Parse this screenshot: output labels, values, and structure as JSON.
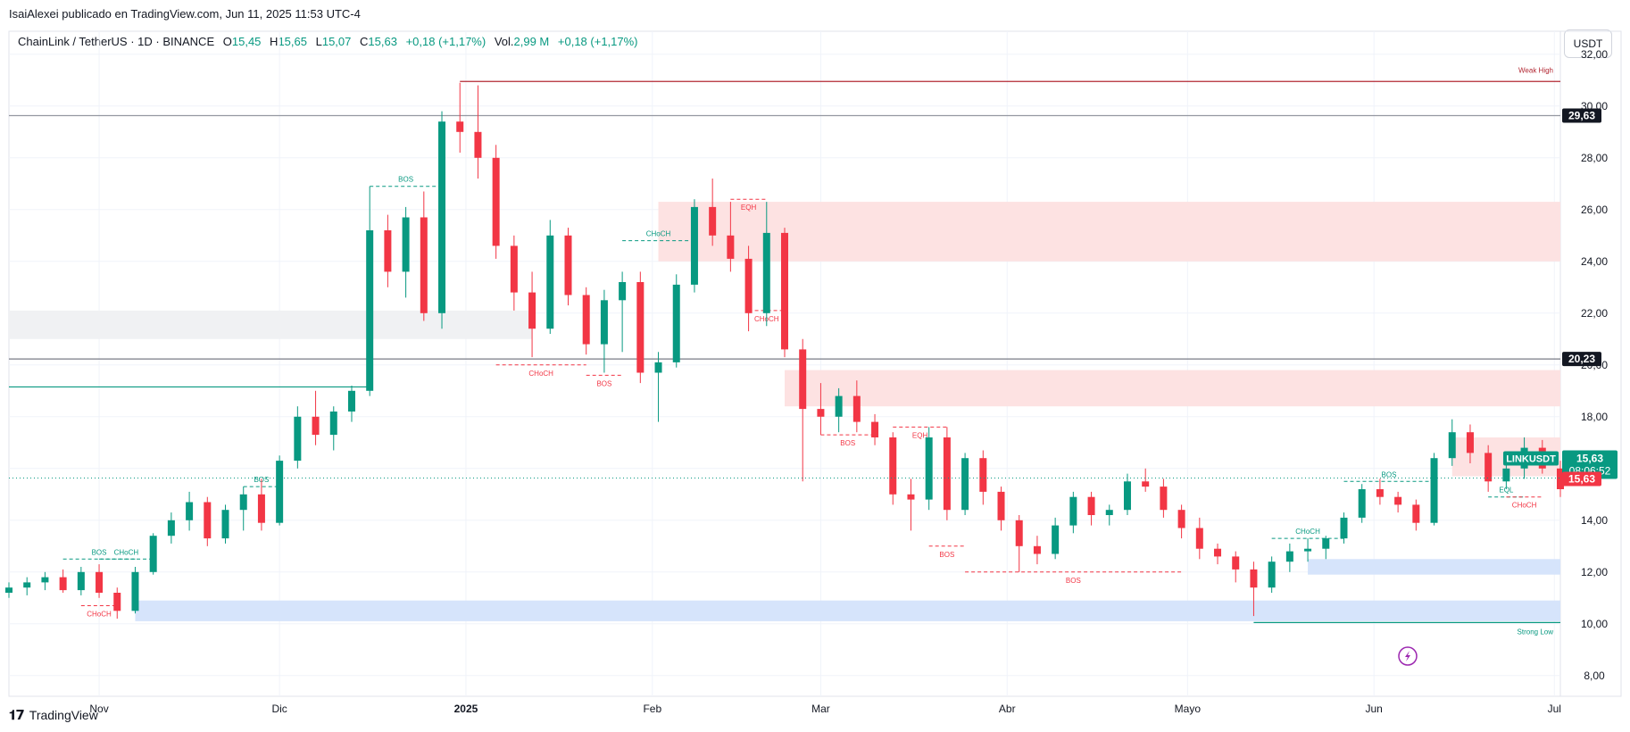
{
  "header": {
    "publisher_line": "IsaiAlexei publicado en TradingView.com, Jun 11, 2025 11:53 UTC-4",
    "symbol_line": "ChainLink / TetherUS · 1D · BINANCE",
    "ohlc": [
      {
        "k": "O",
        "v": "15,45"
      },
      {
        "k": "H",
        "v": "15,65"
      },
      {
        "k": "L",
        "v": "15,07"
      },
      {
        "k": "C",
        "v": "15,63"
      }
    ],
    "change": "+0,18 (+1,17%)",
    "vol_label": "Vol.",
    "vol_value": "2,99 M",
    "vol_change": "+0,18 (+1,17%)",
    "currency_button": "USDT"
  },
  "footer": {
    "brand": "TradingView"
  },
  "colors": {
    "up": "#089981",
    "down": "#f23645",
    "supply_zone": "#fde2e2",
    "demand_zone": "#d6e4fb",
    "neutral_zone": "#f0f1f3",
    "grid": "#f0f3fa"
  },
  "chart_data": {
    "type": "candlestick",
    "symbol": "LINKUSDT",
    "timeframe": "1D",
    "x_labels": [
      {
        "label": "Nov",
        "date": "2024-11-01"
      },
      {
        "label": "Dic",
        "date": "2024-12-01"
      },
      {
        "label": "2025",
        "date": "2025-01-01"
      },
      {
        "label": "Feb",
        "date": "2025-02-01"
      },
      {
        "label": "Mar",
        "date": "2025-03-01"
      },
      {
        "label": "Abr",
        "date": "2025-04-01"
      },
      {
        "label": "Mayo",
        "date": "2025-05-01"
      },
      {
        "label": "Jun",
        "date": "2025-06-01"
      },
      {
        "label": "Jul",
        "date": "2025-07-01"
      }
    ],
    "x_range": [
      "2024-10-17",
      "2025-07-02"
    ],
    "ylim": [
      7.2,
      32.2
    ],
    "y_ticks": [
      "8,00",
      "10,00",
      "12,00",
      "14,00",
      "16,00",
      "18,00",
      "20,00",
      "22,00",
      "24,00",
      "26,00",
      "28,00",
      "30,00",
      "32,00"
    ],
    "price_badges": [
      {
        "text": "29,63",
        "value": 29.63
      },
      {
        "text": "20,23",
        "value": 20.23
      }
    ],
    "current": {
      "symbol": "LINKUSDT",
      "price": "15,63",
      "countdown": "08:06:52",
      "value": 15.63
    },
    "candles": [
      {
        "d": "2024-10-17",
        "o": 11.2,
        "h": 11.6,
        "l": 11.0,
        "c": 11.4
      },
      {
        "d": "2024-10-20",
        "o": 11.4,
        "h": 11.8,
        "l": 11.1,
        "c": 11.6
      },
      {
        "d": "2024-10-23",
        "o": 11.6,
        "h": 12.0,
        "l": 11.3,
        "c": 11.8
      },
      {
        "d": "2024-10-26",
        "o": 11.8,
        "h": 12.1,
        "l": 11.2,
        "c": 11.3
      },
      {
        "d": "2024-10-29",
        "o": 11.3,
        "h": 12.2,
        "l": 11.1,
        "c": 12.0
      },
      {
        "d": "2024-11-01",
        "o": 12.0,
        "h": 12.3,
        "l": 11.0,
        "c": 11.2
      },
      {
        "d": "2024-11-04",
        "o": 11.2,
        "h": 11.4,
        "l": 10.2,
        "c": 10.5
      },
      {
        "d": "2024-11-07",
        "o": 10.5,
        "h": 12.2,
        "l": 10.4,
        "c": 12.0
      },
      {
        "d": "2024-11-10",
        "o": 12.0,
        "h": 13.5,
        "l": 11.9,
        "c": 13.4
      },
      {
        "d": "2024-11-13",
        "o": 13.4,
        "h": 14.3,
        "l": 13.1,
        "c": 14.0
      },
      {
        "d": "2024-11-16",
        "o": 14.0,
        "h": 15.1,
        "l": 13.6,
        "c": 14.7
      },
      {
        "d": "2024-11-19",
        "o": 14.7,
        "h": 14.9,
        "l": 13.0,
        "c": 13.3
      },
      {
        "d": "2024-11-22",
        "o": 13.3,
        "h": 14.6,
        "l": 13.1,
        "c": 14.4
      },
      {
        "d": "2024-11-25",
        "o": 14.4,
        "h": 15.3,
        "l": 13.6,
        "c": 15.0
      },
      {
        "d": "2024-11-28",
        "o": 15.0,
        "h": 15.6,
        "l": 13.6,
        "c": 13.9
      },
      {
        "d": "2024-12-01",
        "o": 13.9,
        "h": 16.5,
        "l": 13.8,
        "c": 16.3
      },
      {
        "d": "2024-12-04",
        "o": 16.3,
        "h": 18.4,
        "l": 16.0,
        "c": 18.0
      },
      {
        "d": "2024-12-07",
        "o": 18.0,
        "h": 19.0,
        "l": 16.9,
        "c": 17.3
      },
      {
        "d": "2024-12-10",
        "o": 17.3,
        "h": 18.4,
        "l": 16.7,
        "c": 18.2
      },
      {
        "d": "2024-12-13",
        "o": 18.2,
        "h": 19.2,
        "l": 17.8,
        "c": 19.0
      },
      {
        "d": "2024-12-16",
        "o": 19.0,
        "h": 26.9,
        "l": 18.8,
        "c": 25.2
      },
      {
        "d": "2024-12-19",
        "o": 25.2,
        "h": 25.8,
        "l": 23.0,
        "c": 23.6
      },
      {
        "d": "2024-12-22",
        "o": 23.6,
        "h": 26.1,
        "l": 22.6,
        "c": 25.7
      },
      {
        "d": "2024-12-25",
        "o": 25.7,
        "h": 26.7,
        "l": 21.7,
        "c": 22.0
      },
      {
        "d": "2024-12-28",
        "o": 22.0,
        "h": 29.8,
        "l": 21.4,
        "c": 29.4
      },
      {
        "d": "2024-12-31",
        "o": 29.4,
        "h": 30.9,
        "l": 28.2,
        "c": 29.0
      },
      {
        "d": "2025-01-03",
        "o": 29.0,
        "h": 30.8,
        "l": 27.2,
        "c": 28.0
      },
      {
        "d": "2025-01-06",
        "o": 28.0,
        "h": 28.5,
        "l": 24.1,
        "c": 24.6
      },
      {
        "d": "2025-01-09",
        "o": 24.6,
        "h": 25.0,
        "l": 22.1,
        "c": 22.8
      },
      {
        "d": "2025-01-12",
        "o": 22.8,
        "h": 23.6,
        "l": 20.3,
        "c": 21.4
      },
      {
        "d": "2025-01-15",
        "o": 21.4,
        "h": 25.6,
        "l": 21.2,
        "c": 25.0
      },
      {
        "d": "2025-01-18",
        "o": 25.0,
        "h": 25.3,
        "l": 22.3,
        "c": 22.7
      },
      {
        "d": "2025-01-21",
        "o": 22.7,
        "h": 23.0,
        "l": 20.4,
        "c": 20.8
      },
      {
        "d": "2025-01-24",
        "o": 20.8,
        "h": 22.9,
        "l": 19.7,
        "c": 22.5
      },
      {
        "d": "2025-01-27",
        "o": 22.5,
        "h": 23.6,
        "l": 20.5,
        "c": 23.2
      },
      {
        "d": "2025-01-30",
        "o": 23.2,
        "h": 23.6,
        "l": 19.3,
        "c": 19.7
      },
      {
        "d": "2025-02-02",
        "o": 19.7,
        "h": 20.5,
        "l": 17.8,
        "c": 20.1
      },
      {
        "d": "2025-02-05",
        "o": 20.1,
        "h": 23.5,
        "l": 19.9,
        "c": 23.1
      },
      {
        "d": "2025-02-08",
        "o": 23.1,
        "h": 26.4,
        "l": 22.8,
        "c": 26.1
      },
      {
        "d": "2025-02-11",
        "o": 26.1,
        "h": 27.2,
        "l": 24.6,
        "c": 25.0
      },
      {
        "d": "2025-02-14",
        "o": 25.0,
        "h": 26.3,
        "l": 23.6,
        "c": 24.1
      },
      {
        "d": "2025-02-17",
        "o": 24.1,
        "h": 24.6,
        "l": 21.3,
        "c": 22.0
      },
      {
        "d": "2025-02-20",
        "o": 22.0,
        "h": 26.3,
        "l": 21.5,
        "c": 25.1
      },
      {
        "d": "2025-02-23",
        "o": 25.1,
        "h": 25.3,
        "l": 20.3,
        "c": 20.6
      },
      {
        "d": "2025-02-26",
        "o": 20.6,
        "h": 21.0,
        "l": 15.5,
        "c": 18.3
      },
      {
        "d": "2025-03-01",
        "o": 18.3,
        "h": 19.3,
        "l": 17.3,
        "c": 18.0
      },
      {
        "d": "2025-03-04",
        "o": 18.0,
        "h": 19.1,
        "l": 17.4,
        "c": 18.8
      },
      {
        "d": "2025-03-07",
        "o": 18.8,
        "h": 19.4,
        "l": 17.4,
        "c": 17.8
      },
      {
        "d": "2025-03-10",
        "o": 17.8,
        "h": 18.1,
        "l": 16.9,
        "c": 17.2
      },
      {
        "d": "2025-03-13",
        "o": 17.2,
        "h": 17.4,
        "l": 14.6,
        "c": 15.0
      },
      {
        "d": "2025-03-16",
        "o": 15.0,
        "h": 15.6,
        "l": 13.6,
        "c": 14.8
      },
      {
        "d": "2025-03-19",
        "o": 14.8,
        "h": 17.6,
        "l": 14.4,
        "c": 17.2
      },
      {
        "d": "2025-03-22",
        "o": 17.2,
        "h": 17.6,
        "l": 14.0,
        "c": 14.4
      },
      {
        "d": "2025-03-25",
        "o": 14.4,
        "h": 16.6,
        "l": 14.2,
        "c": 16.4
      },
      {
        "d": "2025-03-28",
        "o": 16.4,
        "h": 16.7,
        "l": 14.6,
        "c": 15.1
      },
      {
        "d": "2025-03-31",
        "o": 15.1,
        "h": 15.3,
        "l": 13.6,
        "c": 14.0
      },
      {
        "d": "2025-04-03",
        "o": 14.0,
        "h": 14.2,
        "l": 12.0,
        "c": 13.0
      },
      {
        "d": "2025-04-06",
        "o": 13.0,
        "h": 13.4,
        "l": 12.3,
        "c": 12.7
      },
      {
        "d": "2025-04-09",
        "o": 12.7,
        "h": 14.1,
        "l": 12.5,
        "c": 13.8
      },
      {
        "d": "2025-04-12",
        "o": 13.8,
        "h": 15.1,
        "l": 13.5,
        "c": 14.9
      },
      {
        "d": "2025-04-15",
        "o": 14.9,
        "h": 15.1,
        "l": 13.8,
        "c": 14.2
      },
      {
        "d": "2025-04-18",
        "o": 14.2,
        "h": 14.6,
        "l": 13.8,
        "c": 14.4
      },
      {
        "d": "2025-04-21",
        "o": 14.4,
        "h": 15.8,
        "l": 14.2,
        "c": 15.5
      },
      {
        "d": "2025-04-24",
        "o": 15.5,
        "h": 16.0,
        "l": 15.1,
        "c": 15.3
      },
      {
        "d": "2025-04-27",
        "o": 15.3,
        "h": 15.6,
        "l": 14.1,
        "c": 14.4
      },
      {
        "d": "2025-04-30",
        "o": 14.4,
        "h": 14.6,
        "l": 13.3,
        "c": 13.7
      },
      {
        "d": "2025-05-03",
        "o": 13.7,
        "h": 14.1,
        "l": 12.5,
        "c": 12.9
      },
      {
        "d": "2025-05-06",
        "o": 12.9,
        "h": 13.1,
        "l": 12.3,
        "c": 12.6
      },
      {
        "d": "2025-05-09",
        "o": 12.6,
        "h": 12.8,
        "l": 11.6,
        "c": 12.1
      },
      {
        "d": "2025-05-12",
        "o": 12.1,
        "h": 12.4,
        "l": 10.3,
        "c": 11.4
      },
      {
        "d": "2025-05-15",
        "o": 11.4,
        "h": 12.6,
        "l": 11.2,
        "c": 12.4
      },
      {
        "d": "2025-05-18",
        "o": 12.4,
        "h": 13.1,
        "l": 12.0,
        "c": 12.8
      },
      {
        "d": "2025-05-21",
        "o": 12.8,
        "h": 13.3,
        "l": 12.4,
        "c": 12.9
      },
      {
        "d": "2025-05-24",
        "o": 12.9,
        "h": 13.4,
        "l": 12.5,
        "c": 13.3
      },
      {
        "d": "2025-05-27",
        "o": 13.3,
        "h": 14.3,
        "l": 13.1,
        "c": 14.1
      },
      {
        "d": "2025-05-30",
        "o": 14.1,
        "h": 15.4,
        "l": 13.9,
        "c": 15.2
      },
      {
        "d": "2025-06-02",
        "o": 15.2,
        "h": 15.6,
        "l": 14.6,
        "c": 14.9
      },
      {
        "d": "2025-06-05",
        "o": 14.9,
        "h": 15.1,
        "l": 14.3,
        "c": 14.6
      },
      {
        "d": "2025-06-08",
        "o": 14.6,
        "h": 14.8,
        "l": 13.6,
        "c": 13.9
      },
      {
        "d": "2025-06-11",
        "o": 13.9,
        "h": 16.6,
        "l": 13.8,
        "c": 16.4
      },
      {
        "d": "2025-06-14",
        "o": 16.4,
        "h": 17.9,
        "l": 16.1,
        "c": 17.4
      },
      {
        "d": "2025-06-17",
        "o": 17.4,
        "h": 17.7,
        "l": 16.2,
        "c": 16.6
      },
      {
        "d": "2025-06-20",
        "o": 16.6,
        "h": 16.9,
        "l": 15.1,
        "c": 15.5
      },
      {
        "d": "2025-06-23",
        "o": 15.5,
        "h": 16.3,
        "l": 15.2,
        "c": 16.0
      },
      {
        "d": "2025-06-26",
        "o": 16.0,
        "h": 17.2,
        "l": 15.6,
        "c": 16.8
      },
      {
        "d": "2025-06-29",
        "o": 16.8,
        "h": 17.1,
        "l": 15.8,
        "c": 16.0
      },
      {
        "d": "2025-07-02",
        "o": 16.0,
        "h": 16.3,
        "l": 14.9,
        "c": 15.2
      }
    ],
    "zones": [
      {
        "kind": "supply",
        "from": "2025-02-02",
        "to": "2025-07-02",
        "top": 26.3,
        "bottom": 24.0
      },
      {
        "kind": "supply",
        "from": "2025-02-23",
        "to": "2025-07-02",
        "top": 19.8,
        "bottom": 18.4
      },
      {
        "kind": "supply",
        "from": "2025-06-14",
        "to": "2025-07-02",
        "top": 17.2,
        "bottom": 15.7
      },
      {
        "kind": "neutral",
        "from": "2024-10-17",
        "to": "2025-01-12",
        "top": 22.1,
        "bottom": 21.0
      },
      {
        "kind": "demand",
        "from": "2025-05-21",
        "to": "2025-07-02",
        "top": 12.5,
        "bottom": 11.9
      },
      {
        "kind": "demand",
        "from": "2024-11-07",
        "to": "2025-07-02",
        "top": 10.9,
        "bottom": 10.1
      }
    ],
    "levels": [
      {
        "kind": "weak_high",
        "value": 30.95,
        "from": "2024-12-31",
        "to": "2025-07-02",
        "label": "Weak High",
        "color": "#b22833"
      },
      {
        "kind": "strong_low",
        "value": 10.05,
        "from": "2025-05-12",
        "to": "2025-07-02",
        "label": "Strong Low",
        "color": "#089981"
      },
      {
        "kind": "ref",
        "value": 29.63,
        "from": "2024-10-17",
        "to": "2025-07-02",
        "label": "",
        "color": "#9598a1"
      },
      {
        "kind": "ref",
        "value": 20.23,
        "from": "2024-10-17",
        "to": "2025-07-02",
        "label": "",
        "color": "#787b86"
      },
      {
        "kind": "support",
        "value": 19.15,
        "from": "2024-10-17",
        "to": "2024-12-16",
        "label": "",
        "color": "#089981"
      }
    ],
    "structure": [
      {
        "label": "BOS",
        "color": "#089981",
        "value": 12.5,
        "from": "2024-10-26",
        "to": "2024-11-07"
      },
      {
        "label": "CHoCH",
        "color": "#089981",
        "value": 12.5,
        "from": "2024-11-01",
        "to": "2024-11-10"
      },
      {
        "label": "CHoCH",
        "color": "#f23645",
        "value": 10.7,
        "from": "2024-10-29",
        "to": "2024-11-04"
      },
      {
        "label": "BOS",
        "color": "#089981",
        "value": 15.3,
        "from": "2024-11-25",
        "to": "2024-12-01"
      },
      {
        "label": "BOS",
        "color": "#089981",
        "value": 26.9,
        "from": "2024-12-16",
        "to": "2024-12-28"
      },
      {
        "label": "CHoCH",
        "color": "#f23645",
        "value": 20.0,
        "from": "2025-01-06",
        "to": "2025-01-21"
      },
      {
        "label": "BOS",
        "color": "#f23645",
        "value": 19.6,
        "from": "2025-01-21",
        "to": "2025-01-27"
      },
      {
        "label": "CHoCH",
        "color": "#089981",
        "value": 24.8,
        "from": "2025-01-27",
        "to": "2025-02-08"
      },
      {
        "label": "EQH",
        "color": "#f23645",
        "value": 26.4,
        "from": "2025-02-14",
        "to": "2025-02-20"
      },
      {
        "label": "CHoCH",
        "color": "#f23645",
        "value": 22.1,
        "from": "2025-02-17",
        "to": "2025-02-23"
      },
      {
        "label": "BOS",
        "color": "#f23645",
        "value": 17.3,
        "from": "2025-03-01",
        "to": "2025-03-10"
      },
      {
        "label": "EQH",
        "color": "#f23645",
        "value": 17.6,
        "from": "2025-03-13",
        "to": "2025-03-22"
      },
      {
        "label": "BOS",
        "color": "#f23645",
        "value": 13.0,
        "from": "2025-03-19",
        "to": "2025-03-25"
      },
      {
        "label": "BOS",
        "color": "#f23645",
        "value": 12.0,
        "from": "2025-03-25",
        "to": "2025-04-30"
      },
      {
        "label": "CHoCH",
        "color": "#089981",
        "value": 13.3,
        "from": "2025-05-15",
        "to": "2025-05-27"
      },
      {
        "label": "BOS",
        "color": "#089981",
        "value": 15.5,
        "from": "2025-05-27",
        "to": "2025-06-11"
      },
      {
        "label": "EQL",
        "color": "#089981",
        "value": 14.9,
        "from": "2025-06-20",
        "to": "2025-06-26"
      },
      {
        "label": "CHoCH",
        "color": "#f23645",
        "value": 14.9,
        "from": "2025-06-23",
        "to": "2025-06-29"
      }
    ]
  }
}
